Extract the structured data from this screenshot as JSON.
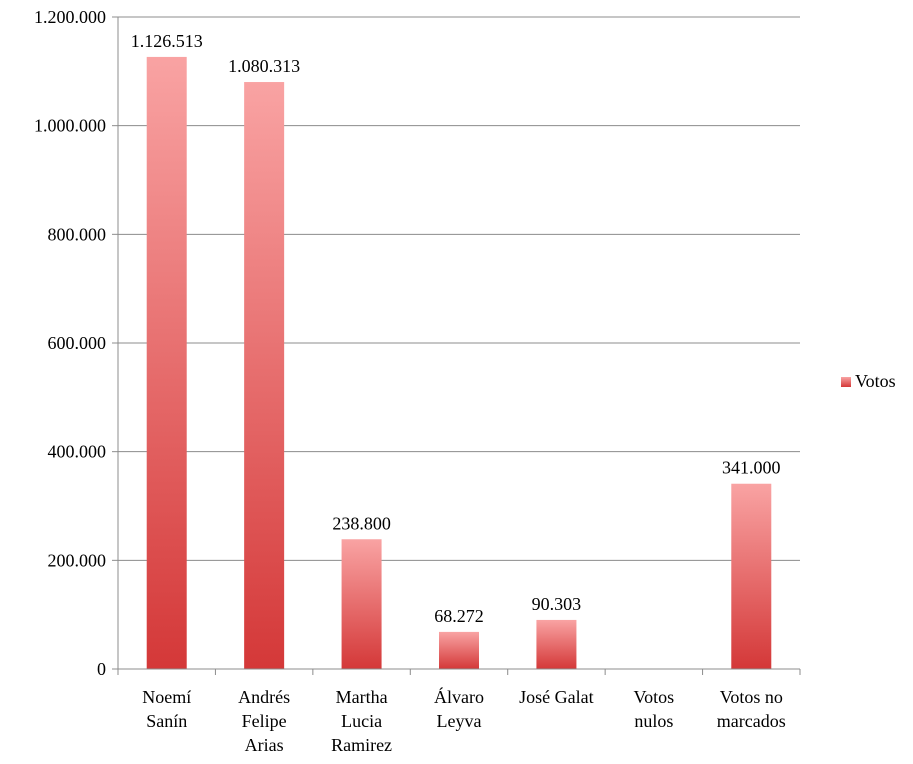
{
  "chart_data": {
    "type": "bar",
    "categories": [
      [
        "Noemí",
        "Sanín"
      ],
      [
        "Andrés",
        "Felipe",
        "Arias"
      ],
      [
        "Martha",
        "Lucia",
        "Ramirez"
      ],
      [
        "Álvaro",
        "Leyva"
      ],
      [
        "José Galat"
      ],
      [
        "Votos",
        "nulos"
      ],
      [
        "Votos no",
        "marcados"
      ]
    ],
    "series": [
      {
        "name": "Votos",
        "values": [
          1126513,
          1080313,
          238800,
          68272,
          90303,
          0,
          341000
        ],
        "value_labels": [
          "1.126.513",
          "1.080.313",
          "238.800",
          "68.272",
          "90.303",
          "",
          "341.000"
        ]
      }
    ],
    "ylim": [
      0,
      1200000
    ],
    "yticks": [
      0,
      200000,
      400000,
      600000,
      800000,
      1000000,
      1200000
    ],
    "ytick_labels": [
      "0",
      "200.000",
      "400.000",
      "600.000",
      "800.000",
      "1.000.000",
      "1.200.000"
    ],
    "grid": true,
    "legend": {
      "position": "right",
      "entries": [
        "Votos"
      ]
    },
    "colors": {
      "bar_top": "#f9a3a3",
      "bar_bottom": "#d43838",
      "gridline": "#8c8c8c",
      "axis": "#8c8c8c"
    }
  }
}
